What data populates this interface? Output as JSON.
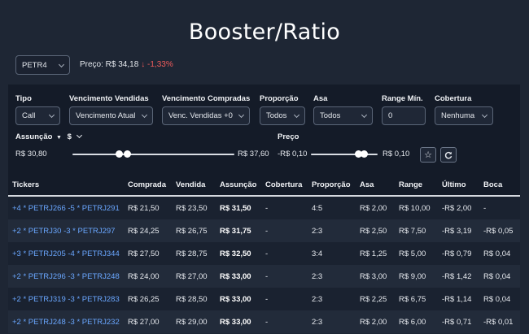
{
  "title": "Booster/Ratio",
  "ticker_select": {
    "value": "PETR4"
  },
  "price": {
    "label": "Preço: R$ 34,18",
    "change": "↓ -1,33%"
  },
  "filters": {
    "tipo": {
      "label": "Tipo",
      "value": "Call"
    },
    "venc_vendidas": {
      "label": "Vencimento Vendidas",
      "value": "Vencimento Atual"
    },
    "venc_compradas": {
      "label": "Vencimento Compradas",
      "value": "Venc. Vendidas +0"
    },
    "proporcao": {
      "label": "Proporção",
      "value": "Todos"
    },
    "asa": {
      "label": "Asa",
      "value": "Todos"
    },
    "range_min": {
      "label": "Range Mín.",
      "value": "0"
    },
    "cobertura": {
      "label": "Cobertura",
      "value": "Nenhuma"
    }
  },
  "assuncao": {
    "label": "Assunção",
    "unit": "$",
    "min_label": "R$ 30,80",
    "max_label": "R$ 37,60",
    "low_fraction": 0.29,
    "high_fraction": 0.34
  },
  "preco": {
    "label": "Preço",
    "min_label": "-R$ 0,10",
    "max_label": "R$ 0,10",
    "low_fraction": 0.71,
    "high_fraction": 0.8
  },
  "icons": {
    "star": "star-icon",
    "refresh": "refresh-icon",
    "sort": "caret-down-icon"
  },
  "table": {
    "headers": [
      "Tickers",
      "Comprada",
      "Vendida",
      "Assunção",
      "Cobertura",
      "Proporção",
      "Asa",
      "Range",
      "Último",
      "Boca"
    ],
    "rows": [
      [
        "+4 * PETRJ266 -5 * PETRJ291",
        "R$ 21,50",
        "R$ 23,50",
        "R$ 31,50",
        "-",
        "4:5",
        "R$ 2,00",
        "R$ 10,00",
        "-R$ 2,00",
        "-"
      ],
      [
        "+2 * PETRJ30 -3 * PETRJ297",
        "R$ 24,25",
        "R$ 26,75",
        "R$ 31,75",
        "-",
        "2:3",
        "R$ 2,50",
        "R$ 7,50",
        "-R$ 3,19",
        "-R$ 0,05"
      ],
      [
        "+3 * PETRJ205 -4 * PETRJ344",
        "R$ 27,50",
        "R$ 28,75",
        "R$ 32,50",
        "-",
        "3:4",
        "R$ 1,25",
        "R$ 5,00",
        "-R$ 0,79",
        "R$ 0,04"
      ],
      [
        "+2 * PETRJ296 -3 * PETRJ248",
        "R$ 24,00",
        "R$ 27,00",
        "R$ 33,00",
        "-",
        "2:3",
        "R$ 3,00",
        "R$ 9,00",
        "-R$ 1,42",
        "R$ 0,04"
      ],
      [
        "+2 * PETRJ319 -3 * PETRJ283",
        "R$ 26,25",
        "R$ 28,50",
        "R$ 33,00",
        "-",
        "2:3",
        "R$ 2,25",
        "R$ 6,75",
        "-R$ 1,14",
        "R$ 0,04"
      ],
      [
        "+2 * PETRJ248 -3 * PETRJ232",
        "R$ 27,00",
        "R$ 29,00",
        "R$ 33,00",
        "-",
        "2:3",
        "R$ 2,00",
        "R$ 6,00",
        "-R$ 0,71",
        "-R$ 0,01"
      ]
    ]
  }
}
